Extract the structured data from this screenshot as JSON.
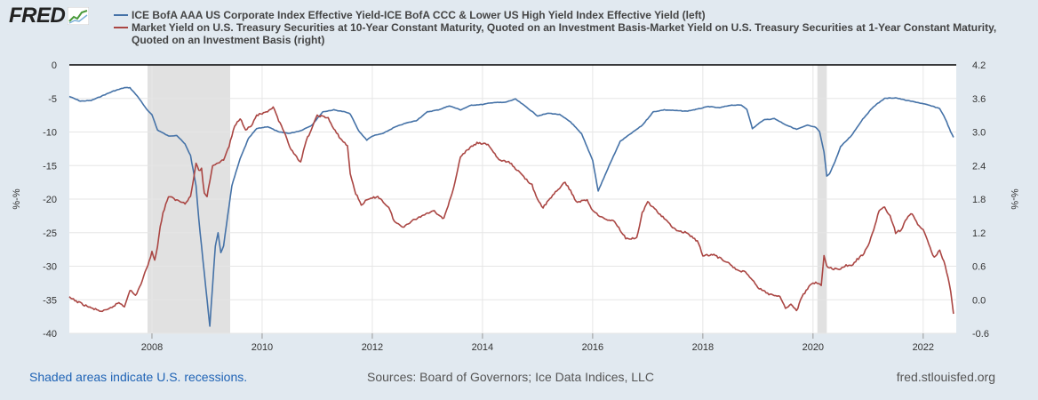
{
  "brand": {
    "logo_text": "FRED",
    "logo_icon": "trend-line-icon"
  },
  "footer": {
    "recession_note": "Shaded areas indicate U.S. recessions.",
    "sources": "Sources: Board of Governors; Ice Data Indices, LLC",
    "site": "fred.stlouisfed.org"
  },
  "colors": {
    "background": "#e1e9f0",
    "series1": "#4572a7",
    "series2": "#aa4643",
    "recession": "#e1e1e1",
    "link": "#1f63b5"
  },
  "chart_data": {
    "type": "line",
    "grid": true,
    "legend_position": "top",
    "left_axis": {
      "label": "%-%",
      "range": [
        -40,
        0
      ],
      "ticks": [
        "0",
        "-5",
        "-10",
        "-15",
        "-20",
        "-25",
        "-30",
        "-35",
        "-40"
      ]
    },
    "right_axis": {
      "label": "%-%",
      "range": [
        -0.6,
        4.2
      ],
      "ticks": [
        "4.2",
        "3.6",
        "3.0",
        "2.4",
        "1.8",
        "1.2",
        "0.6",
        "0.0",
        "-0.6"
      ]
    },
    "x_axis": {
      "range": [
        2006.5,
        2022.6
      ],
      "ticks": [
        "2008",
        "2010",
        "2012",
        "2014",
        "2016",
        "2018",
        "2020",
        "2022"
      ]
    },
    "recessions": [
      [
        2007.92,
        2009.42
      ],
      [
        2020.08,
        2020.25
      ]
    ],
    "series": [
      {
        "name": "ICE BofA AAA US Corporate Index Effective Yield-ICE BofA CCC & Lower US High Yield Index Effective Yield (left)",
        "axis": "left",
        "points": [
          [
            2006.5,
            -4.7
          ],
          [
            2006.7,
            -5.4
          ],
          [
            2006.9,
            -5.3
          ],
          [
            2007.1,
            -4.6
          ],
          [
            2007.3,
            -3.9
          ],
          [
            2007.5,
            -3.4
          ],
          [
            2007.6,
            -3.4
          ],
          [
            2007.75,
            -4.8
          ],
          [
            2007.9,
            -6.6
          ],
          [
            2008.0,
            -7.4
          ],
          [
            2008.1,
            -9.7
          ],
          [
            2008.3,
            -10.6
          ],
          [
            2008.45,
            -10.5
          ],
          [
            2008.6,
            -11.8
          ],
          [
            2008.7,
            -13.5
          ],
          [
            2008.8,
            -18.0
          ],
          [
            2008.85,
            -23.0
          ],
          [
            2008.9,
            -27.0
          ],
          [
            2008.95,
            -31.0
          ],
          [
            2009.0,
            -35.0
          ],
          [
            2009.05,
            -38.9
          ],
          [
            2009.1,
            -33.0
          ],
          [
            2009.15,
            -27.0
          ],
          [
            2009.2,
            -25.0
          ],
          [
            2009.25,
            -28.0
          ],
          [
            2009.3,
            -27.0
          ],
          [
            2009.35,
            -24.0
          ],
          [
            2009.45,
            -18.0
          ],
          [
            2009.6,
            -14.0
          ],
          [
            2009.75,
            -11.0
          ],
          [
            2009.9,
            -9.5
          ],
          [
            2010.1,
            -9.2
          ],
          [
            2010.3,
            -10.0
          ],
          [
            2010.5,
            -10.2
          ],
          [
            2010.7,
            -9.8
          ],
          [
            2010.9,
            -9.0
          ],
          [
            2011.1,
            -7.0
          ],
          [
            2011.3,
            -6.7
          ],
          [
            2011.5,
            -7.0
          ],
          [
            2011.6,
            -7.3
          ],
          [
            2011.75,
            -9.8
          ],
          [
            2011.9,
            -11.2
          ],
          [
            2012.0,
            -10.6
          ],
          [
            2012.2,
            -10.2
          ],
          [
            2012.4,
            -9.3
          ],
          [
            2012.6,
            -8.7
          ],
          [
            2012.8,
            -8.3
          ],
          [
            2013.0,
            -7.0
          ],
          [
            2013.2,
            -6.7
          ],
          [
            2013.4,
            -6.1
          ],
          [
            2013.6,
            -6.7
          ],
          [
            2013.8,
            -6.0
          ],
          [
            2014.0,
            -5.9
          ],
          [
            2014.2,
            -5.6
          ],
          [
            2014.4,
            -5.6
          ],
          [
            2014.6,
            -5.1
          ],
          [
            2014.8,
            -6.3
          ],
          [
            2015.0,
            -7.6
          ],
          [
            2015.2,
            -7.2
          ],
          [
            2015.4,
            -7.4
          ],
          [
            2015.6,
            -8.5
          ],
          [
            2015.8,
            -10.3
          ],
          [
            2016.0,
            -14.2
          ],
          [
            2016.1,
            -18.8
          ],
          [
            2016.3,
            -15.0
          ],
          [
            2016.5,
            -11.4
          ],
          [
            2016.7,
            -10.2
          ],
          [
            2016.9,
            -9.0
          ],
          [
            2017.1,
            -7.0
          ],
          [
            2017.3,
            -6.7
          ],
          [
            2017.5,
            -6.8
          ],
          [
            2017.7,
            -6.9
          ],
          [
            2017.9,
            -6.6
          ],
          [
            2018.1,
            -6.2
          ],
          [
            2018.3,
            -6.4
          ],
          [
            2018.5,
            -6.0
          ],
          [
            2018.7,
            -6.0
          ],
          [
            2018.8,
            -6.6
          ],
          [
            2018.9,
            -9.5
          ],
          [
            2019.1,
            -8.2
          ],
          [
            2019.3,
            -8.0
          ],
          [
            2019.5,
            -8.9
          ],
          [
            2019.7,
            -9.6
          ],
          [
            2019.9,
            -9.0
          ],
          [
            2020.05,
            -9.3
          ],
          [
            2020.12,
            -10.0
          ],
          [
            2020.2,
            -13.0
          ],
          [
            2020.25,
            -16.6
          ],
          [
            2020.3,
            -16.2
          ],
          [
            2020.4,
            -14.4
          ],
          [
            2020.5,
            -12.2
          ],
          [
            2020.7,
            -10.5
          ],
          [
            2020.9,
            -8.1
          ],
          [
            2021.1,
            -6.2
          ],
          [
            2021.3,
            -5.0
          ],
          [
            2021.5,
            -4.9
          ],
          [
            2021.7,
            -5.3
          ],
          [
            2021.9,
            -5.6
          ],
          [
            2022.1,
            -6.0
          ],
          [
            2022.3,
            -6.5
          ],
          [
            2022.4,
            -8.0
          ],
          [
            2022.5,
            -10.0
          ],
          [
            2022.55,
            -10.8
          ]
        ]
      },
      {
        "name": "Market Yield on U.S. Treasury Securities at 10-Year Constant Maturity, Quoted on an Investment Basis-Market Yield on U.S. Treasury Securities at 1-Year Constant Maturity, Quoted on an Investment Basis (right)",
        "axis": "right",
        "points": [
          [
            2006.5,
            0.04
          ],
          [
            2006.7,
            -0.06
          ],
          [
            2006.9,
            -0.15
          ],
          [
            2007.1,
            -0.21
          ],
          [
            2007.2,
            -0.18
          ],
          [
            2007.4,
            -0.05
          ],
          [
            2007.5,
            -0.12
          ],
          [
            2007.6,
            0.18
          ],
          [
            2007.7,
            0.07
          ],
          [
            2007.8,
            0.28
          ],
          [
            2007.9,
            0.55
          ],
          [
            2008.0,
            0.85
          ],
          [
            2008.05,
            0.72
          ],
          [
            2008.1,
            0.95
          ],
          [
            2008.15,
            1.3
          ],
          [
            2008.2,
            1.55
          ],
          [
            2008.3,
            1.85
          ],
          [
            2008.45,
            1.78
          ],
          [
            2008.6,
            1.73
          ],
          [
            2008.7,
            1.85
          ],
          [
            2008.75,
            2.12
          ],
          [
            2008.8,
            2.45
          ],
          [
            2008.85,
            2.3
          ],
          [
            2008.9,
            2.35
          ],
          [
            2008.95,
            1.9
          ],
          [
            2009.0,
            1.85
          ],
          [
            2009.1,
            2.4
          ],
          [
            2009.3,
            2.5
          ],
          [
            2009.4,
            2.75
          ],
          [
            2009.5,
            3.1
          ],
          [
            2009.6,
            3.25
          ],
          [
            2009.7,
            3.05
          ],
          [
            2009.8,
            3.1
          ],
          [
            2009.9,
            3.3
          ],
          [
            2010.1,
            3.35
          ],
          [
            2010.2,
            3.45
          ],
          [
            2010.3,
            3.2
          ],
          [
            2010.4,
            3.0
          ],
          [
            2010.5,
            2.72
          ],
          [
            2010.6,
            2.6
          ],
          [
            2010.7,
            2.45
          ],
          [
            2010.8,
            2.85
          ],
          [
            2010.9,
            3.05
          ],
          [
            2011.0,
            3.3
          ],
          [
            2011.2,
            3.25
          ],
          [
            2011.3,
            3.05
          ],
          [
            2011.45,
            2.85
          ],
          [
            2011.55,
            2.75
          ],
          [
            2011.6,
            2.25
          ],
          [
            2011.7,
            1.9
          ],
          [
            2011.8,
            1.7
          ],
          [
            2011.9,
            1.78
          ],
          [
            2012.1,
            1.85
          ],
          [
            2012.3,
            1.65
          ],
          [
            2012.4,
            1.4
          ],
          [
            2012.55,
            1.3
          ],
          [
            2012.7,
            1.4
          ],
          [
            2012.9,
            1.5
          ],
          [
            2013.1,
            1.6
          ],
          [
            2013.3,
            1.45
          ],
          [
            2013.45,
            1.9
          ],
          [
            2013.6,
            2.55
          ],
          [
            2013.75,
            2.7
          ],
          [
            2013.9,
            2.8
          ],
          [
            2014.1,
            2.78
          ],
          [
            2014.3,
            2.5
          ],
          [
            2014.5,
            2.45
          ],
          [
            2014.7,
            2.25
          ],
          [
            2014.9,
            2.05
          ],
          [
            2015.0,
            1.78
          ],
          [
            2015.1,
            1.65
          ],
          [
            2015.3,
            1.9
          ],
          [
            2015.5,
            2.1
          ],
          [
            2015.6,
            1.95
          ],
          [
            2015.7,
            1.75
          ],
          [
            2015.9,
            1.78
          ],
          [
            2016.0,
            1.6
          ],
          [
            2016.2,
            1.45
          ],
          [
            2016.4,
            1.4
          ],
          [
            2016.6,
            1.1
          ],
          [
            2016.8,
            1.1
          ],
          [
            2016.9,
            1.55
          ],
          [
            2017.0,
            1.75
          ],
          [
            2017.1,
            1.65
          ],
          [
            2017.3,
            1.45
          ],
          [
            2017.5,
            1.25
          ],
          [
            2017.7,
            1.2
          ],
          [
            2017.9,
            1.05
          ],
          [
            2018.0,
            0.8
          ],
          [
            2018.2,
            0.8
          ],
          [
            2018.4,
            0.7
          ],
          [
            2018.6,
            0.55
          ],
          [
            2018.8,
            0.48
          ],
          [
            2019.0,
            0.22
          ],
          [
            2019.2,
            0.1
          ],
          [
            2019.4,
            0.05
          ],
          [
            2019.5,
            -0.15
          ],
          [
            2019.6,
            -0.08
          ],
          [
            2019.7,
            -0.2
          ],
          [
            2019.8,
            0.05
          ],
          [
            2019.95,
            0.28
          ],
          [
            2020.05,
            0.3
          ],
          [
            2020.15,
            0.25
          ],
          [
            2020.2,
            0.8
          ],
          [
            2020.25,
            0.6
          ],
          [
            2020.35,
            0.55
          ],
          [
            2020.5,
            0.55
          ],
          [
            2020.6,
            0.62
          ],
          [
            2020.7,
            0.6
          ],
          [
            2020.8,
            0.72
          ],
          [
            2020.9,
            0.8
          ],
          [
            2021.0,
            0.95
          ],
          [
            2021.1,
            1.25
          ],
          [
            2021.2,
            1.6
          ],
          [
            2021.3,
            1.65
          ],
          [
            2021.4,
            1.5
          ],
          [
            2021.5,
            1.2
          ],
          [
            2021.6,
            1.25
          ],
          [
            2021.7,
            1.45
          ],
          [
            2021.8,
            1.55
          ],
          [
            2021.9,
            1.35
          ],
          [
            2022.0,
            1.25
          ],
          [
            2022.1,
            1.0
          ],
          [
            2022.2,
            0.75
          ],
          [
            2022.3,
            0.9
          ],
          [
            2022.4,
            0.6
          ],
          [
            2022.45,
            0.4
          ],
          [
            2022.5,
            0.15
          ],
          [
            2022.55,
            -0.25
          ]
        ]
      }
    ]
  }
}
